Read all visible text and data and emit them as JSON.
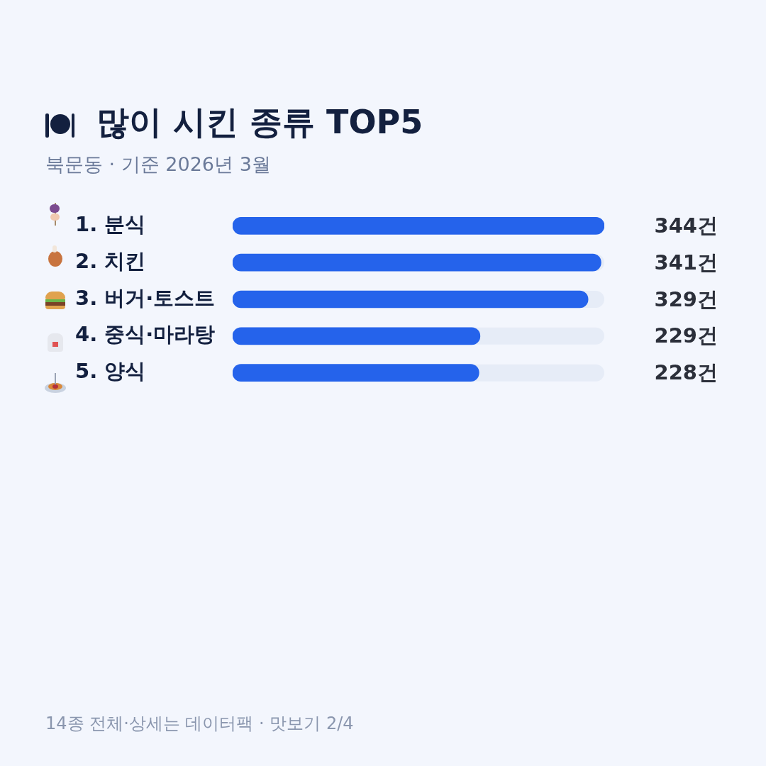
{
  "chart_data": {
    "type": "bar",
    "orientation": "horizontal",
    "title": "많이 시킨 종류 TOP5",
    "subtitle": "북문동 · 기준 2026년 3월",
    "categories": [
      "1. 분식",
      "2. 치킨",
      "3. 버거·토스트",
      "4. 중식·마라탕",
      "5. 양식"
    ],
    "values": [
      344,
      341,
      329,
      229,
      228
    ],
    "value_labels": [
      "344건",
      "341건",
      "329건",
      "229건",
      "228건"
    ],
    "color": "#2563eb",
    "xlim": [
      0,
      344
    ],
    "annotations": [
      "14종 전체·상세는 데이터팩 · 맛보기 2/4"
    ]
  }
}
